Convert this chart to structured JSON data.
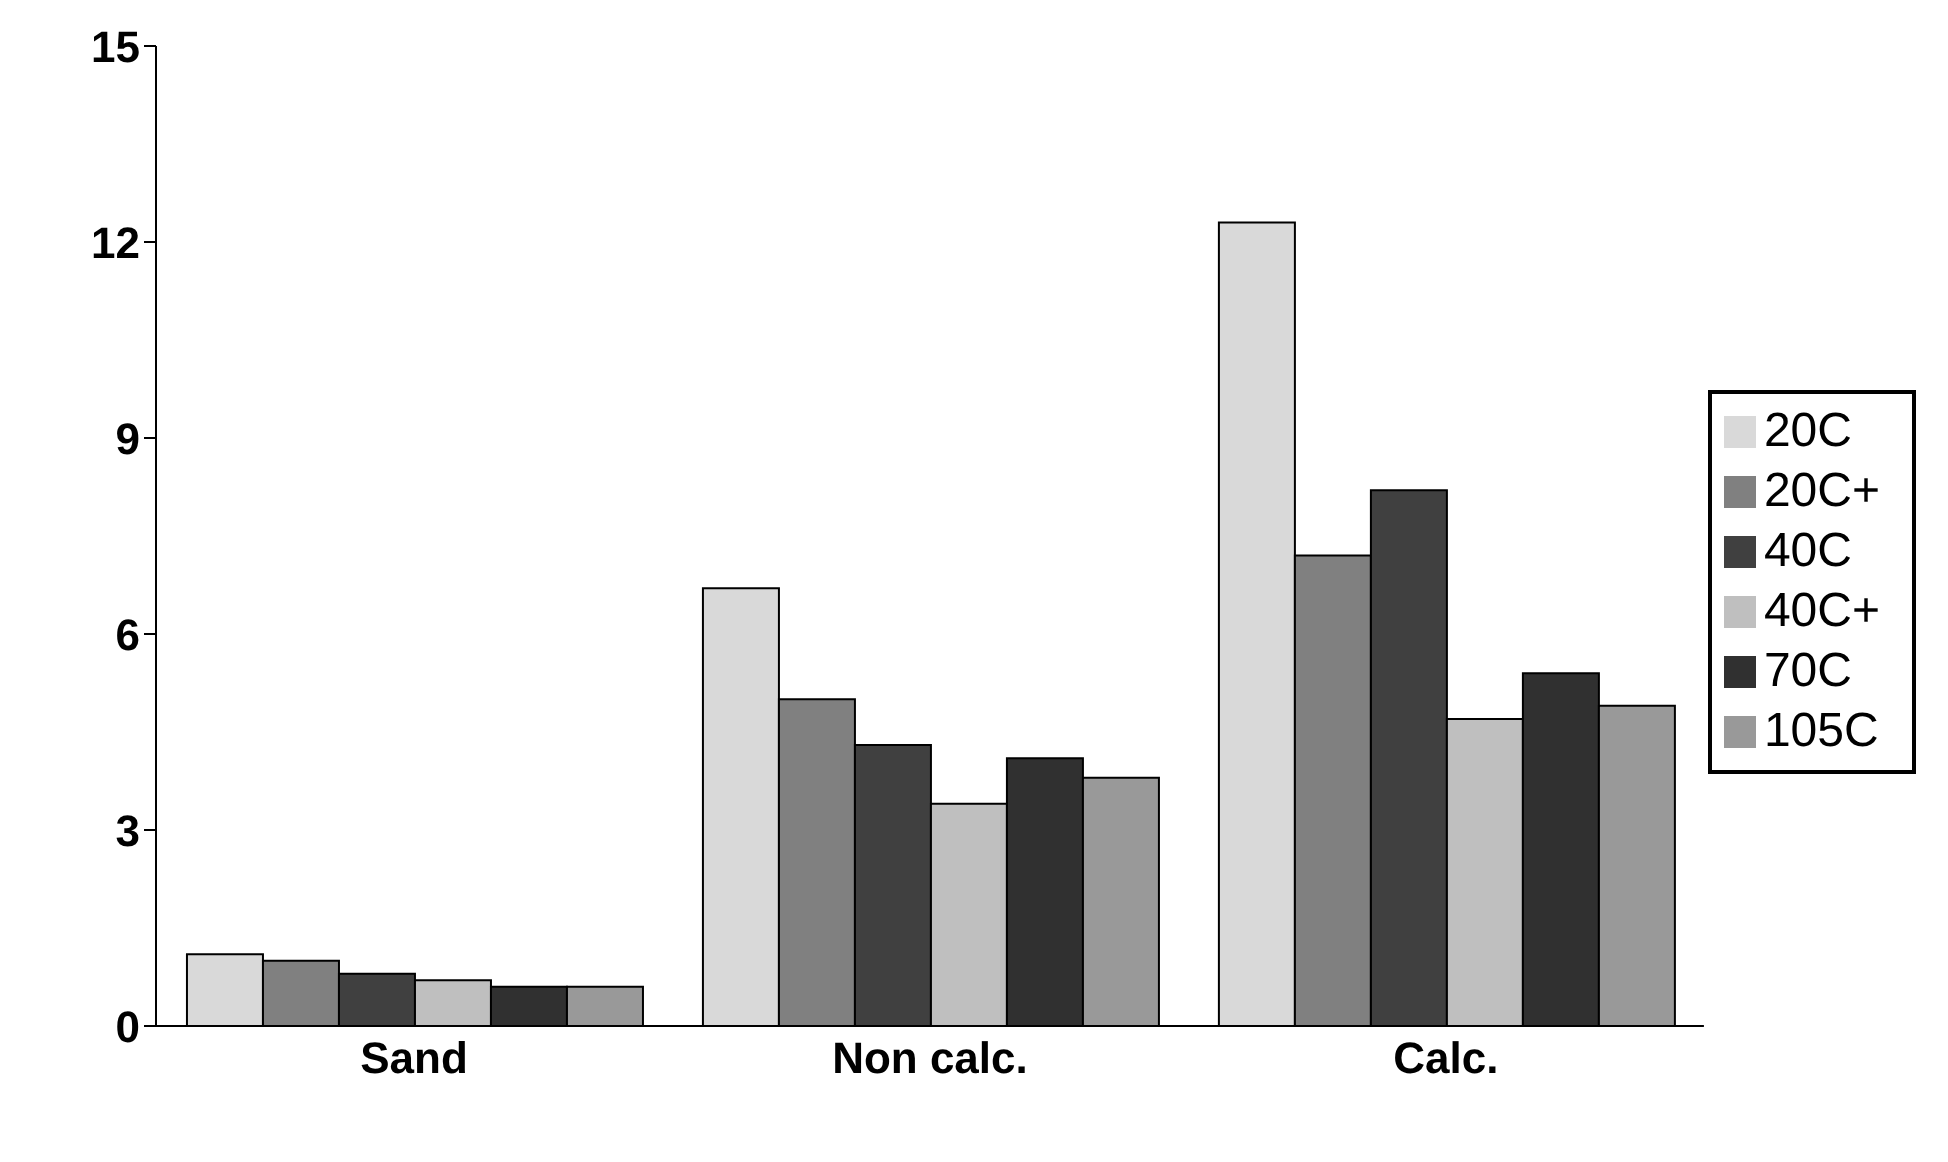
{
  "chart_data": {
    "type": "bar",
    "categories": [
      "Sand",
      "Non calc.",
      "Calc."
    ],
    "series": [
      {
        "name": "20C",
        "color": "#d9d9d9",
        "values": [
          1.1,
          6.7,
          12.3
        ]
      },
      {
        "name": "20C+",
        "color": "#808080",
        "values": [
          1.0,
          5.0,
          7.2
        ]
      },
      {
        "name": "40C",
        "color": "#404040",
        "values": [
          0.8,
          4.3,
          8.2
        ]
      },
      {
        "name": "40C+",
        "color": "#bfbfbf",
        "values": [
          0.7,
          3.4,
          4.7
        ]
      },
      {
        "name": "70C",
        "color": "#303030",
        "values": [
          0.6,
          4.1,
          5.4
        ]
      },
      {
        "name": "105C",
        "color": "#999999",
        "values": [
          0.6,
          3.8,
          4.9
        ]
      }
    ],
    "ylim": [
      0,
      15
    ],
    "yticks": [
      0,
      3,
      6,
      9,
      12,
      15
    ],
    "grid": false,
    "legend": "right"
  }
}
